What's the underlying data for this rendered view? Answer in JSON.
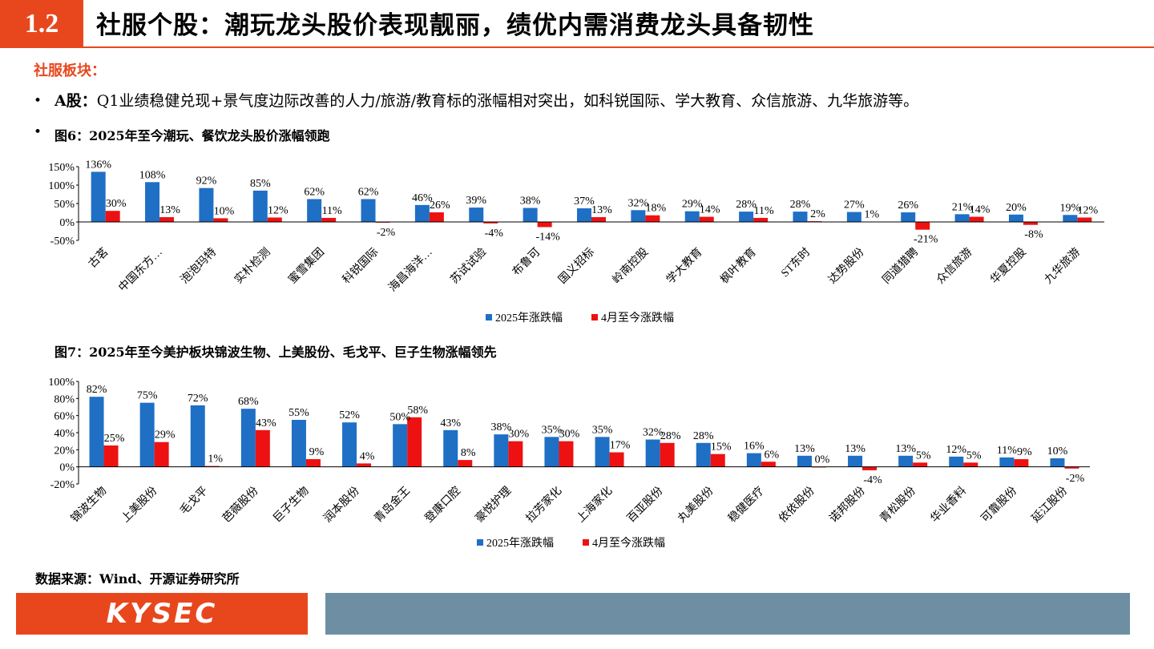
{
  "header": {
    "number": "1.2",
    "title": "社服个股：潮玩龙头股价表现靓丽，绩优内需消费龙头具备韧性"
  },
  "section_label": "社服板块：",
  "bullet1": {
    "bold": "A股：",
    "text": "Q1业绩稳健兑现+景气度边际改善的人力/旅游/教育标的涨幅相对突出，如科锐国际、学大教育、众信旅游、九华旅游等。"
  },
  "fig6_caption": "图6：2025年至今潮玩、餐饮龙头股价涨幅领跑",
  "fig7_caption": "图7：2025年至今美护板块锦波生物、上美股份、毛戈平、巨子生物涨幅领先",
  "source": "数据来源：Wind、开源证券研究所",
  "footer": {
    "logo": "KYSEC"
  },
  "colors": {
    "accent": "#e8471d",
    "blue": "#1f6fc5",
    "red": "#ee1111",
    "footer_bar": "#6e8fa3"
  },
  "chart_data": [
    {
      "type": "bar",
      "categories": [
        "古茗",
        "中国东方…",
        "泡泡玛特",
        "实朴检测",
        "蜜雪集团",
        "科锐国际",
        "海昌海洋…",
        "苏试试验",
        "布鲁可",
        "国义招标",
        "岭南控股",
        "学大教育",
        "枫叶教育",
        "ST东时",
        "达势股份",
        "同道猎聘",
        "众信旅游",
        "华夏控股",
        "九华旅游"
      ],
      "series": [
        {
          "name": "2025年涨跌幅",
          "values": [
            136,
            108,
            92,
            85,
            62,
            62,
            46,
            39,
            38,
            37,
            32,
            29,
            28,
            28,
            27,
            26,
            21,
            20,
            19
          ]
        },
        {
          "name": "4月至今涨跌幅",
          "values": [
            30,
            13,
            10,
            12,
            11,
            -2,
            26,
            -4,
            -14,
            13,
            18,
            14,
            11,
            2,
            1,
            -21,
            14,
            -8,
            12
          ]
        }
      ],
      "yticks": [
        "150%",
        "100%",
        "50%",
        "0%",
        "-50%"
      ],
      "ylim": [
        -50,
        150
      ],
      "legend": "bottom",
      "grid": false
    },
    {
      "type": "bar",
      "categories": [
        "锦波生物",
        "上美股份",
        "毛戈平",
        "芭薇股份",
        "巨子生物",
        "润本股份",
        "青岛金王",
        "登康口腔",
        "豪悦护理",
        "拉芳家化",
        "上海家化",
        "百亚股份",
        "丸美股份",
        "稳健医疗",
        "依依股份",
        "诺邦股份",
        "青松股份",
        "华业香料",
        "可靠股份",
        "延江股份"
      ],
      "series": [
        {
          "name": "2025年涨跌幅",
          "values": [
            82,
            75,
            72,
            68,
            55,
            52,
            50,
            43,
            38,
            35,
            35,
            32,
            28,
            16,
            13,
            13,
            13,
            12,
            11,
            10
          ]
        },
        {
          "name": "4月至今涨跌幅",
          "values": [
            25,
            29,
            1,
            43,
            9,
            4,
            58,
            8,
            30,
            30,
            17,
            28,
            15,
            6,
            0,
            -4,
            5,
            5,
            9,
            -2
          ]
        }
      ],
      "yticks": [
        "100%",
        "80%",
        "60%",
        "40%",
        "20%",
        "0%",
        "-20%"
      ],
      "ylim": [
        -20,
        100
      ],
      "legend": "bottom",
      "grid": false
    }
  ]
}
